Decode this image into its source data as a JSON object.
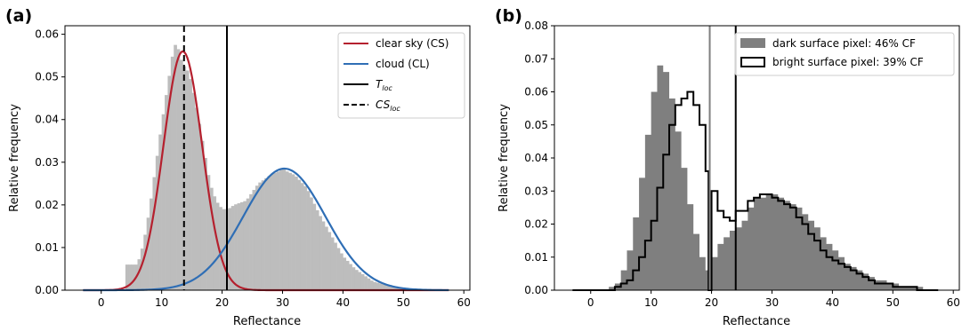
{
  "chart_data": [
    {
      "type": "histogram+line",
      "panel_label": "(a)",
      "xlabel": "Reflectance",
      "ylabel": "Relative frequency",
      "xlim": [
        -6,
        61
      ],
      "ylim": [
        0,
        0.062
      ],
      "xticks": [
        0,
        10,
        20,
        30,
        40,
        50,
        60
      ],
      "yticks": [
        0.0,
        0.01,
        0.02,
        0.03,
        0.04,
        0.05,
        0.06
      ],
      "ytick_labels": [
        "0.00",
        "0.01",
        "0.02",
        "0.03",
        "0.04",
        "0.05",
        "0.06"
      ],
      "legend_position": "top-right",
      "legend": [
        {
          "label": "clear sky (CS)",
          "style": "line",
          "color": "#b5202e"
        },
        {
          "label": "cloud (CL)",
          "style": "line",
          "color": "#2f6eb5"
        },
        {
          "label": "T",
          "sub": "loc",
          "style": "line",
          "color": "#000000"
        },
        {
          "label": "CS",
          "sub": "loc",
          "style": "dashed",
          "color": "#000000"
        }
      ],
      "histogram": {
        "color": "#bdbdbd",
        "bin_width": 0.5,
        "x": [
          6.0,
          7.0,
          8.0,
          9.0,
          10.0,
          11.0,
          12.0,
          12.5,
          13.0,
          13.5,
          14.0,
          14.5,
          15.0,
          16.0,
          17.0,
          18.0,
          19.0,
          20.0,
          21.0,
          22.0,
          24.0,
          26.0,
          28.0,
          29.5,
          30.0,
          30.5,
          32.0,
          34.0,
          36.0,
          38.0,
          40.0,
          42.0,
          45.0,
          48.0,
          52.0
        ],
        "y": [
          0.006,
          0.011,
          0.019,
          0.029,
          0.039,
          0.048,
          0.057,
          0.058,
          0.055,
          0.053,
          0.052,
          0.051,
          0.048,
          0.041,
          0.033,
          0.025,
          0.021,
          0.019,
          0.019,
          0.02,
          0.021,
          0.025,
          0.027,
          0.028,
          0.029,
          0.028,
          0.027,
          0.024,
          0.018,
          0.013,
          0.008,
          0.005,
          0.002,
          0.001,
          0.0
        ]
      },
      "series": [
        {
          "name": "clear sky (CS)",
          "color": "#b5202e",
          "curve": "gaussian",
          "mean": 13.5,
          "sd": 3.2,
          "peak": 0.056,
          "x_range": [
            -3,
            57.5
          ]
        },
        {
          "name": "cloud (CL)",
          "color": "#2f6eb5",
          "curve": "gaussian",
          "mean": 30.3,
          "sd": 6.8,
          "peak": 0.0285,
          "x_range": [
            -3,
            57.5
          ]
        }
      ],
      "vlines": [
        {
          "name": "T loc",
          "x": 20.8,
          "style": "solid",
          "color": "#000000"
        },
        {
          "name": "CS loc",
          "x": 13.7,
          "style": "dashed",
          "color": "#000000"
        }
      ]
    },
    {
      "type": "histogram",
      "panel_label": "(b)",
      "xlabel": "Reflectance",
      "ylabel": "Relative frequency",
      "xlim": [
        -6,
        61
      ],
      "ylim": [
        0,
        0.08
      ],
      "xticks": [
        0,
        10,
        20,
        30,
        40,
        50,
        60
      ],
      "yticks": [
        0.0,
        0.01,
        0.02,
        0.03,
        0.04,
        0.05,
        0.06,
        0.07,
        0.08
      ],
      "ytick_labels": [
        "0.00",
        "0.01",
        "0.02",
        "0.03",
        "0.04",
        "0.05",
        "0.06",
        "0.07",
        "0.08"
      ],
      "legend_position": "top-right",
      "legend": [
        {
          "label": "dark surface pixel: 46% CF",
          "style": "filled",
          "color": "#7f7f7f"
        },
        {
          "label": "bright surface pixel: 39% CF",
          "style": "outline",
          "color": "#000000"
        }
      ],
      "series": [
        {
          "name": "dark surface pixel: 46% CF",
          "style": "filled",
          "color": "#7f7f7f",
          "x": [
            -3,
            3.0,
            4.0,
            5.0,
            6.0,
            7.0,
            8.0,
            9.0,
            10.0,
            11.0,
            12.0,
            13.0,
            14.0,
            15.0,
            16.0,
            17.0,
            18.0,
            19.0,
            19.5,
            20.0,
            21.0,
            22.0,
            23.0,
            24.0,
            25.0,
            26.0,
            27.0,
            28.0,
            29.0,
            30.0,
            31.0,
            32.0,
            33.0,
            34.0,
            35.0,
            36.0,
            37.0,
            38.0,
            39.0,
            40.0,
            41.0,
            42.0,
            43.0,
            44.0,
            45.0,
            46.0,
            47.0,
            48.0,
            49.0,
            50.0,
            51.0,
            52.0,
            53.0,
            54.0,
            55.0,
            56.0,
            57.5
          ],
          "y": [
            0.0,
            0.001,
            0.002,
            0.006,
            0.012,
            0.022,
            0.034,
            0.047,
            0.06,
            0.068,
            0.066,
            0.058,
            0.048,
            0.037,
            0.026,
            0.017,
            0.01,
            0.006,
            0.0,
            0.01,
            0.014,
            0.016,
            0.018,
            0.019,
            0.021,
            0.025,
            0.028,
            0.028,
            0.029,
            0.029,
            0.028,
            0.027,
            0.026,
            0.025,
            0.023,
            0.021,
            0.019,
            0.016,
            0.014,
            0.012,
            0.01,
            0.008,
            0.007,
            0.006,
            0.005,
            0.004,
            0.003,
            0.003,
            0.002,
            0.002,
            0.001,
            0.001,
            0.001,
            0.001,
            0.0,
            0.0,
            0.0
          ]
        },
        {
          "name": "bright surface pixel: 39% CF",
          "style": "outline",
          "color": "#000000",
          "x": [
            -3,
            2.0,
            3.0,
            4.0,
            5.0,
            6.0,
            7.0,
            8.0,
            9.0,
            10.0,
            11.0,
            12.0,
            13.0,
            14.0,
            15.0,
            16.0,
            17.0,
            18.0,
            19.0,
            19.5,
            20.0,
            21.0,
            22.0,
            23.0,
            24.0,
            25.0,
            26.0,
            27.0,
            28.0,
            29.0,
            30.0,
            31.0,
            32.0,
            33.0,
            34.0,
            35.0,
            36.0,
            37.0,
            38.0,
            39.0,
            40.0,
            41.0,
            42.0,
            43.0,
            44.0,
            45.0,
            46.0,
            47.0,
            48.0,
            49.0,
            50.0,
            51.0,
            52.0,
            53.0,
            54.0,
            55.0,
            56.0,
            57.5
          ],
          "y": [
            0.0,
            0.0,
            0.0,
            0.001,
            0.002,
            0.003,
            0.006,
            0.01,
            0.015,
            0.021,
            0.031,
            0.041,
            0.05,
            0.056,
            0.058,
            0.06,
            0.056,
            0.05,
            0.036,
            0.0,
            0.03,
            0.024,
            0.022,
            0.021,
            0.024,
            0.024,
            0.027,
            0.028,
            0.029,
            0.029,
            0.028,
            0.027,
            0.026,
            0.025,
            0.022,
            0.02,
            0.017,
            0.015,
            0.012,
            0.01,
            0.009,
            0.008,
            0.007,
            0.006,
            0.005,
            0.004,
            0.003,
            0.002,
            0.002,
            0.002,
            0.001,
            0.001,
            0.001,
            0.001,
            0.0,
            0.0,
            0.0,
            0.0
          ]
        }
      ],
      "vlines": [
        {
          "name": "dark surface threshold",
          "x": 19.7,
          "style": "solid",
          "color": "#7f7f7f"
        },
        {
          "name": "bright surface threshold",
          "x": 24.0,
          "style": "solid",
          "color": "#000000"
        }
      ]
    }
  ]
}
